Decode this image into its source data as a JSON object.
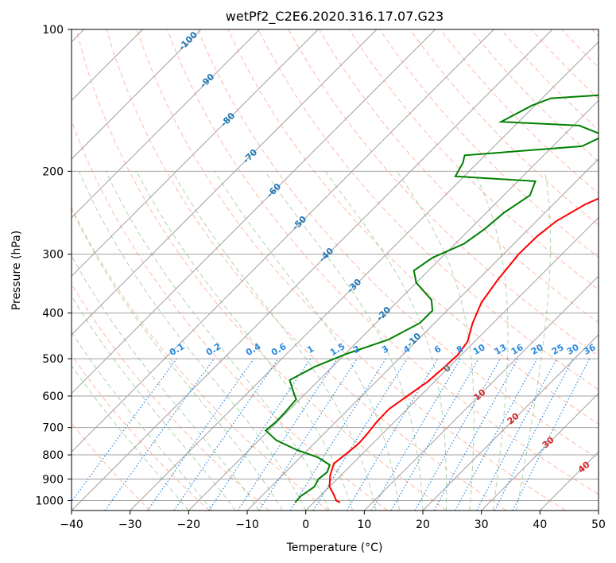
{
  "chart_data": {
    "type": "line",
    "title": "wetPf2_C2E6.2020.316.17.07.G23",
    "xlabel": "Temperature (°C)",
    "ylabel": "Pressure (hPa)",
    "xlim": [
      -40,
      50
    ],
    "ylim": [
      1050,
      100
    ],
    "y_scale": "log",
    "grid": true,
    "x_ticks": [
      "−40",
      "−30",
      "−20",
      "−10",
      "0",
      "10",
      "20",
      "30",
      "40",
      "50"
    ],
    "y_ticks": [
      "100",
      "200",
      "300",
      "400",
      "500",
      "600",
      "700",
      "800",
      "900",
      "1000"
    ],
    "series": [
      {
        "color": "#ff0000",
        "points": [
          [
            4.5,
            1010
          ],
          [
            3.5,
            1000
          ],
          [
            2,
            970
          ],
          [
            0,
            935
          ],
          [
            -1.8,
            885
          ],
          [
            -3.2,
            835
          ],
          [
            -2.7,
            790
          ],
          [
            -2.4,
            755
          ],
          [
            -2.6,
            720
          ],
          [
            -3,
            680
          ],
          [
            -3.1,
            640
          ],
          [
            -2.2,
            600
          ],
          [
            -1.2,
            560
          ],
          [
            -0.8,
            520
          ],
          [
            -0.6,
            490
          ],
          [
            -1.2,
            460
          ],
          [
            -3.5,
            420
          ],
          [
            -5.5,
            380
          ],
          [
            -6.6,
            340
          ],
          [
            -7.4,
            300
          ],
          [
            -7.3,
            275
          ],
          [
            -6.6,
            255
          ],
          [
            -4.5,
            235
          ],
          [
            -0.5,
            215
          ],
          [
            3.5,
            200
          ],
          [
            7,
            175
          ],
          [
            11,
            158
          ],
          [
            15.5,
            144
          ],
          [
            17.5,
            130
          ],
          [
            20,
            117
          ],
          [
            22.5,
            105
          ],
          [
            24.5,
            100
          ]
        ]
      },
      {
        "color": "#008000",
        "points": [
          [
            -3.2,
            1010
          ],
          [
            -3.3,
            980
          ],
          [
            -2.6,
            935
          ],
          [
            -3.2,
            900
          ],
          [
            -2.9,
            870
          ],
          [
            -3.7,
            840
          ],
          [
            -7,
            810
          ],
          [
            -12,
            780
          ],
          [
            -17,
            745
          ],
          [
            -20.5,
            710
          ],
          [
            -20.2,
            680
          ],
          [
            -20.3,
            650
          ],
          [
            -20.6,
            610
          ],
          [
            -22.6,
            585
          ],
          [
            -25,
            555
          ],
          [
            -23,
            520
          ],
          [
            -20,
            490
          ],
          [
            -15,
            455
          ],
          [
            -12.5,
            420
          ],
          [
            -12.5,
            395
          ],
          [
            -14.5,
            375
          ],
          [
            -20,
            345
          ],
          [
            -22.5,
            325
          ],
          [
            -21.5,
            305
          ],
          [
            -18.5,
            285
          ],
          [
            -17.5,
            265
          ],
          [
            -17,
            245
          ],
          [
            -15.5,
            225
          ],
          [
            -17,
            210
          ],
          [
            -31.5,
            205
          ],
          [
            -32.5,
            192
          ],
          [
            -33.5,
            185
          ],
          [
            -15,
            177
          ],
          [
            -13,
            168
          ],
          [
            -19,
            160
          ],
          [
            -33,
            157
          ],
          [
            -30.5,
            145
          ],
          [
            -28.5,
            140
          ],
          [
            -17.5,
            137
          ],
          [
            -9.5,
            127
          ],
          [
            -7,
            116
          ],
          [
            -3.5,
            108
          ],
          [
            -0.5,
            100
          ]
        ]
      }
    ],
    "dry_adiabat_labels": [
      "-100",
      "-90",
      "-80",
      "-70",
      "-60",
      "-50",
      "-40",
      "-30",
      "-20",
      "-10"
    ],
    "mixing_ratio_labels": [
      "0.1",
      "0.2",
      "0.4",
      "0.6",
      "1",
      "1.5",
      "2",
      "3",
      "4",
      "6",
      "8",
      "10",
      "13",
      "16",
      "20",
      "25",
      "30",
      "36"
    ],
    "moist_adiabat_labels": [
      "0",
      "10",
      "20",
      "30",
      "40"
    ],
    "colors": {
      "temperature": "#ff0000",
      "dewpoint": "#008000",
      "dry_adiabat": "#ff8060",
      "moist_adiabat": "#70b070",
      "mixing_ratio": "#2a8ae0",
      "isotherm": "#a0a0a0",
      "dry_label": "#1f77b4",
      "moist_label": "#d62728"
    }
  }
}
